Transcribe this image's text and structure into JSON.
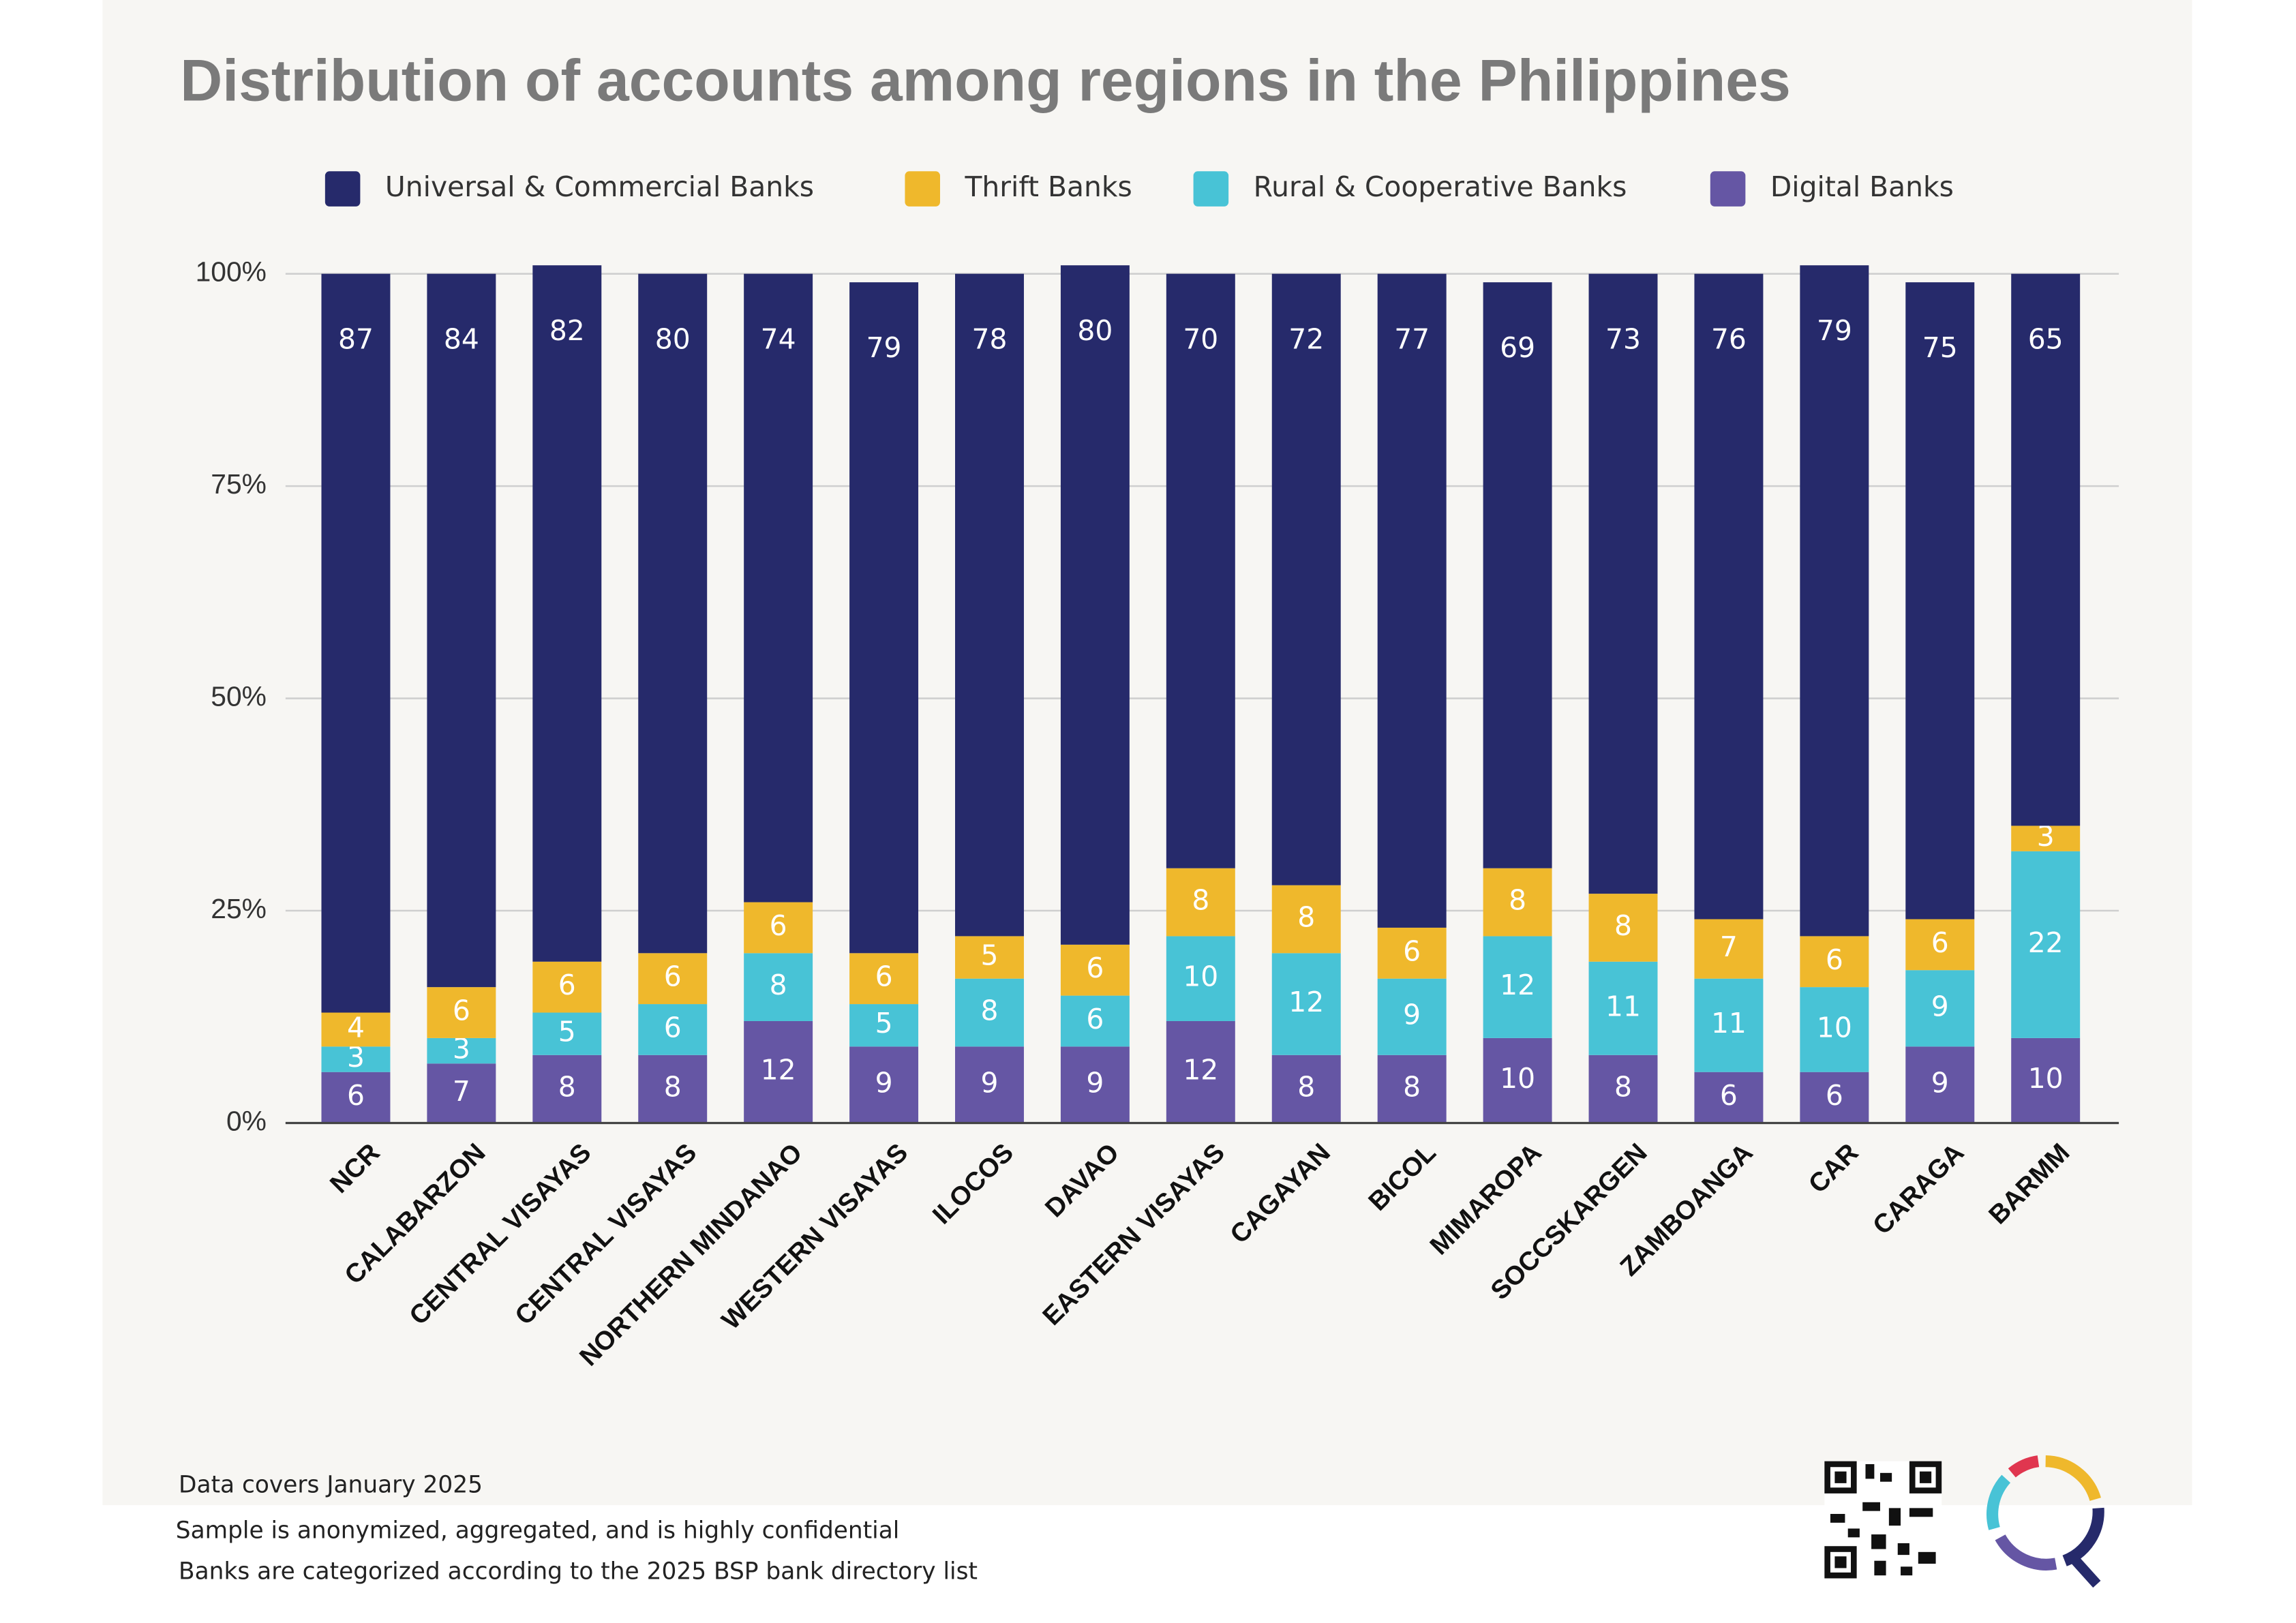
{
  "chart_data": {
    "type": "stacked_bar",
    "title": "Distribution of accounts among regions in the Philippines",
    "categories": [
      "NCR",
      "CALABARZON",
      "CENTRAL VISAYAS",
      "CENTRAL VISAYAS",
      "NORTHERN MINDANAO",
      "WESTERN VISAYAS",
      "ILOCOS",
      "DAVAO",
      "EASTERN VISAYAS",
      "CAGAYAN",
      "BICOL",
      "MIMAROPA",
      "SOCCSKARGEN",
      "ZAMBOANGA",
      "CAR",
      "CARAGA",
      "BARMM"
    ],
    "series": [
      {
        "name": "Universal & Commercial Banks",
        "color": "#262a6b",
        "values": [
          87,
          84,
          82,
          80,
          74,
          79,
          78,
          80,
          70,
          72,
          77,
          69,
          73,
          76,
          79,
          75,
          65
        ]
      },
      {
        "name": "Thrift Banks",
        "color": "#efb82c",
        "values": [
          4,
          6,
          6,
          6,
          6,
          6,
          5,
          6,
          8,
          8,
          6,
          8,
          8,
          7,
          6,
          6,
          3
        ]
      },
      {
        "name": "Rural & Cooperative Banks",
        "color": "#48c3d6",
        "values": [
          3,
          3,
          5,
          6,
          8,
          5,
          8,
          6,
          10,
          12,
          9,
          12,
          11,
          11,
          10,
          9,
          22
        ]
      },
      {
        "name": "Digital Banks",
        "color": "#6556a4",
        "values": [
          6,
          7,
          8,
          8,
          12,
          9,
          9,
          9,
          12,
          8,
          8,
          10,
          8,
          6,
          6,
          9,
          10
        ]
      }
    ],
    "ylim": [
      0,
      100
    ],
    "yticks": [
      {
        "value": 0,
        "label": "0%"
      },
      {
        "value": 25,
        "label": "25%"
      },
      {
        "value": 50,
        "label": "50%"
      },
      {
        "value": 75,
        "label": "75%"
      },
      {
        "value": 100,
        "label": "100%"
      }
    ],
    "grid": true,
    "legend": "top"
  },
  "footnotes": [
    "Data covers January 2025",
    "Sample is anonymized, aggregated, and is highly confidential",
    "Banks are categorized according to the 2025 BSP bank directory list"
  ]
}
